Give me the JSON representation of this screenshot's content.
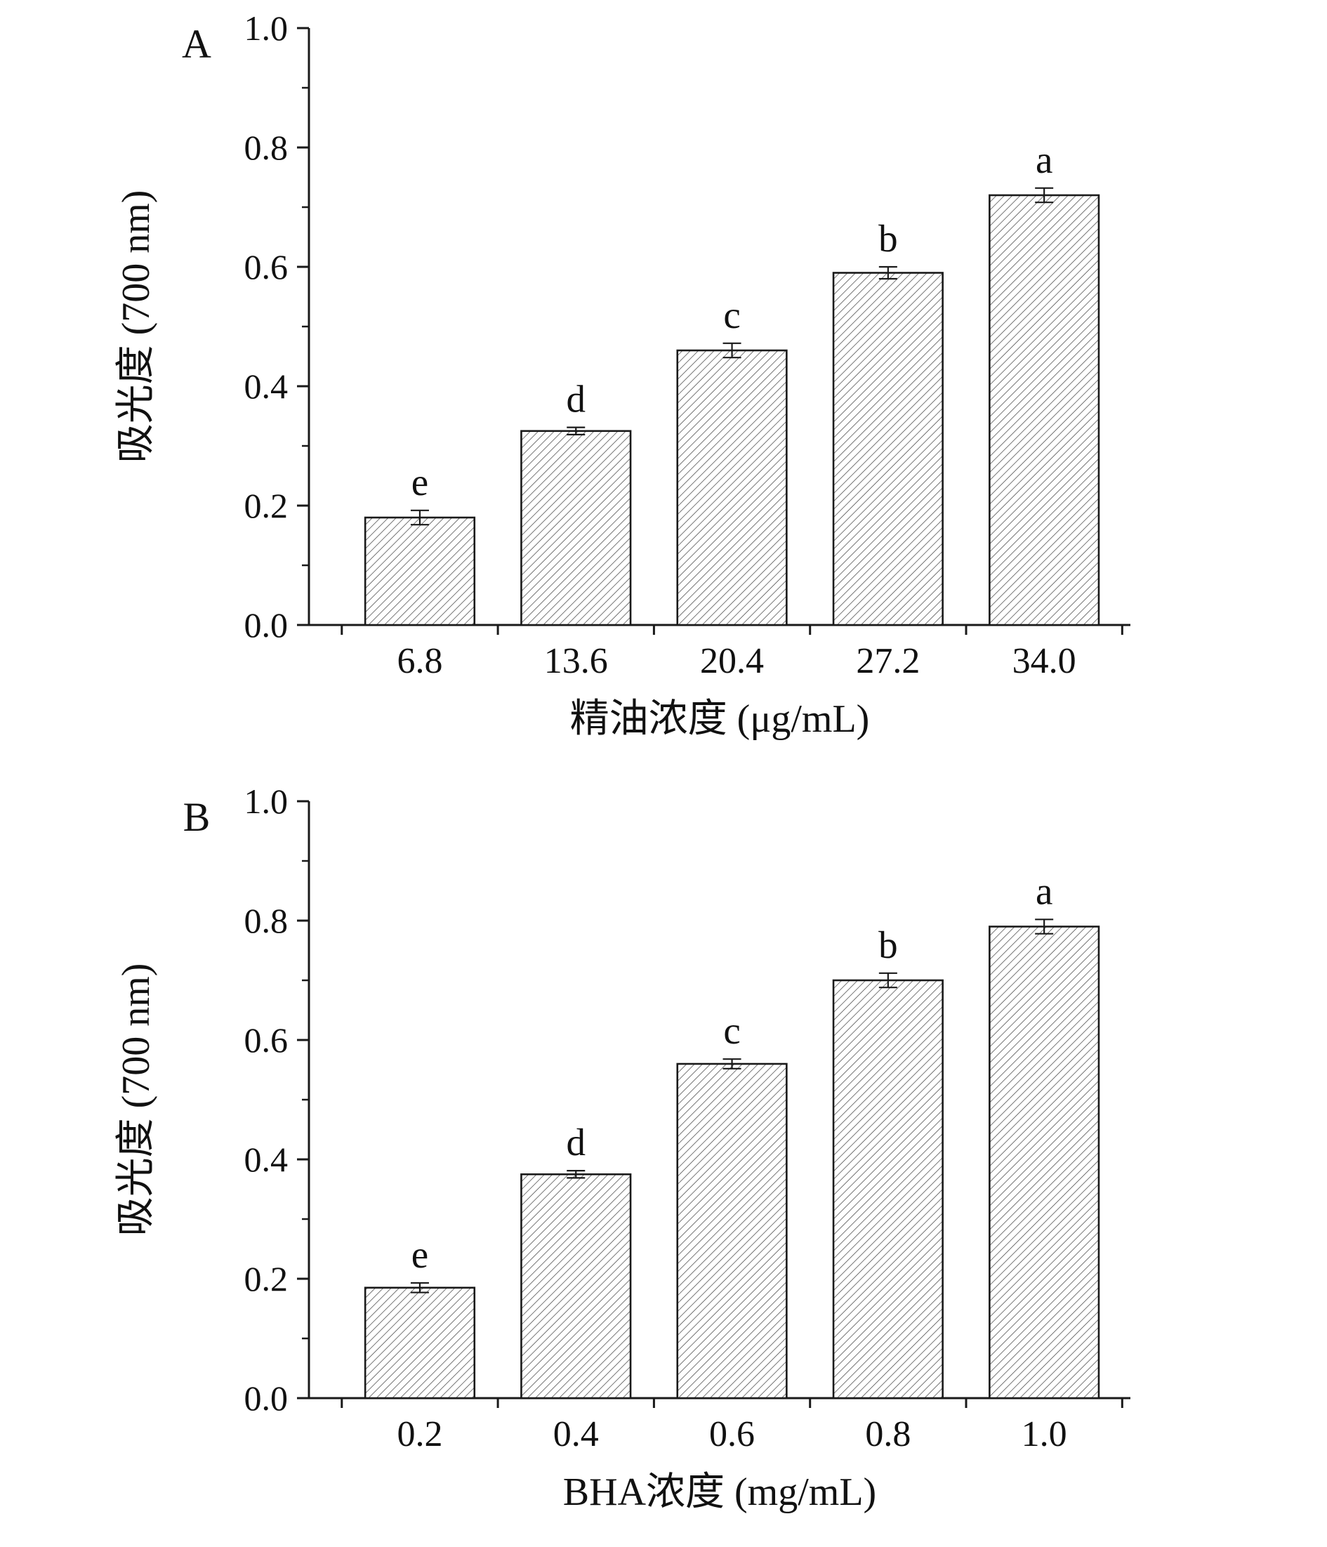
{
  "page": {
    "background": "#ffffff"
  },
  "chart_data": [
    {
      "type": "bar",
      "panel_label": "A",
      "xlabel": "精油浓度 (μg/mL)",
      "ylabel": "吸光度 (700 nm)",
      "categories": [
        "6.8",
        "13.6",
        "20.4",
        "27.2",
        "34.0"
      ],
      "values": [
        0.18,
        0.325,
        0.46,
        0.59,
        0.72
      ],
      "errors": [
        0.012,
        0.006,
        0.012,
        0.01,
        0.012
      ],
      "bar_labels": [
        "e",
        "d",
        "c",
        "b",
        "a"
      ],
      "ylim": [
        0.0,
        1.0
      ],
      "ytick_values": [
        0.0,
        0.2,
        0.4,
        0.6,
        0.8,
        1.0
      ],
      "ytick_labels": [
        "0.0",
        "0.2",
        "0.4",
        "0.6",
        "0.8",
        "1.0"
      ],
      "yminor_step": 0.1,
      "grid": false,
      "bar_style": {
        "fill": "#ffffff",
        "hatch": "diagonal-forward",
        "hatch_color": "#4a4a4a",
        "edge_color": "#1a1a1a"
      }
    },
    {
      "type": "bar",
      "panel_label": "B",
      "xlabel": "BHA浓度 (mg/mL)",
      "ylabel": "吸光度 (700 nm)",
      "categories": [
        "0.2",
        "0.4",
        "0.6",
        "0.8",
        "1.0"
      ],
      "values": [
        0.185,
        0.375,
        0.56,
        0.7,
        0.79
      ],
      "errors": [
        0.008,
        0.006,
        0.008,
        0.012,
        0.012
      ],
      "bar_labels": [
        "e",
        "d",
        "c",
        "b",
        "a"
      ],
      "ylim": [
        0.0,
        1.0
      ],
      "ytick_values": [
        0.0,
        0.2,
        0.4,
        0.6,
        0.8,
        1.0
      ],
      "ytick_labels": [
        "0.0",
        "0.2",
        "0.4",
        "0.6",
        "0.8",
        "1.0"
      ],
      "yminor_step": 0.1,
      "grid": false,
      "bar_style": {
        "fill": "#ffffff",
        "hatch": "diagonal-forward",
        "hatch_color": "#4a4a4a",
        "edge_color": "#1a1a1a"
      }
    }
  ]
}
